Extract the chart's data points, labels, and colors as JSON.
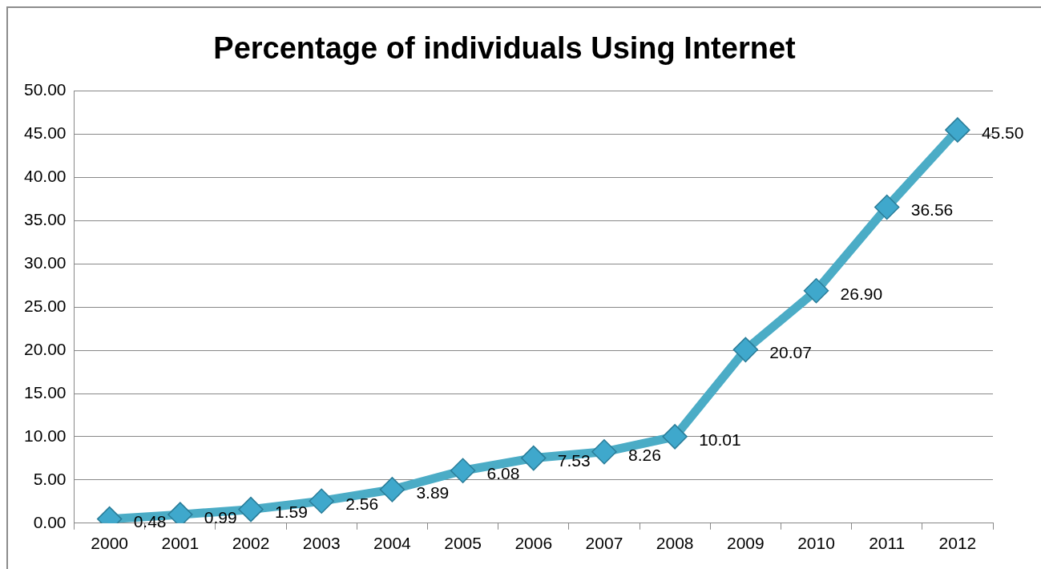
{
  "chart_data": {
    "type": "line",
    "title": "Percentage of individuals Using Internet",
    "categories": [
      "2000",
      "2001",
      "2002",
      "2003",
      "2004",
      "2005",
      "2006",
      "2007",
      "2008",
      "2009",
      "2010",
      "2011",
      "2012"
    ],
    "values": [
      0.48,
      0.99,
      1.59,
      2.56,
      3.89,
      6.08,
      7.53,
      8.26,
      10.01,
      20.07,
      26.9,
      36.56,
      45.5
    ],
    "value_labels": [
      "0.48",
      "0.99",
      "1.59",
      "2.56",
      "3.89",
      "6.08",
      "7.53",
      "8.26",
      "10.01",
      "20.07",
      "26.90",
      "36.56",
      "45.50"
    ],
    "color": "#4bacc6",
    "marker": "diamond",
    "line_style": "solid",
    "grid": "y",
    "legend": false,
    "ylim": [
      0,
      50
    ],
    "yticks": [
      {
        "value": 0,
        "label": "0.00"
      },
      {
        "value": 5,
        "label": "5.00"
      },
      {
        "value": 10,
        "label": "10.00"
      },
      {
        "value": 15,
        "label": "15.00"
      },
      {
        "value": 20,
        "label": "20.00"
      },
      {
        "value": 25,
        "label": "25.00"
      },
      {
        "value": 30,
        "label": "30.00"
      },
      {
        "value": 35,
        "label": "35.00"
      },
      {
        "value": 40,
        "label": "40.00"
      },
      {
        "value": 45,
        "label": "45.00"
      },
      {
        "value": 50,
        "label": "50.00"
      }
    ]
  }
}
